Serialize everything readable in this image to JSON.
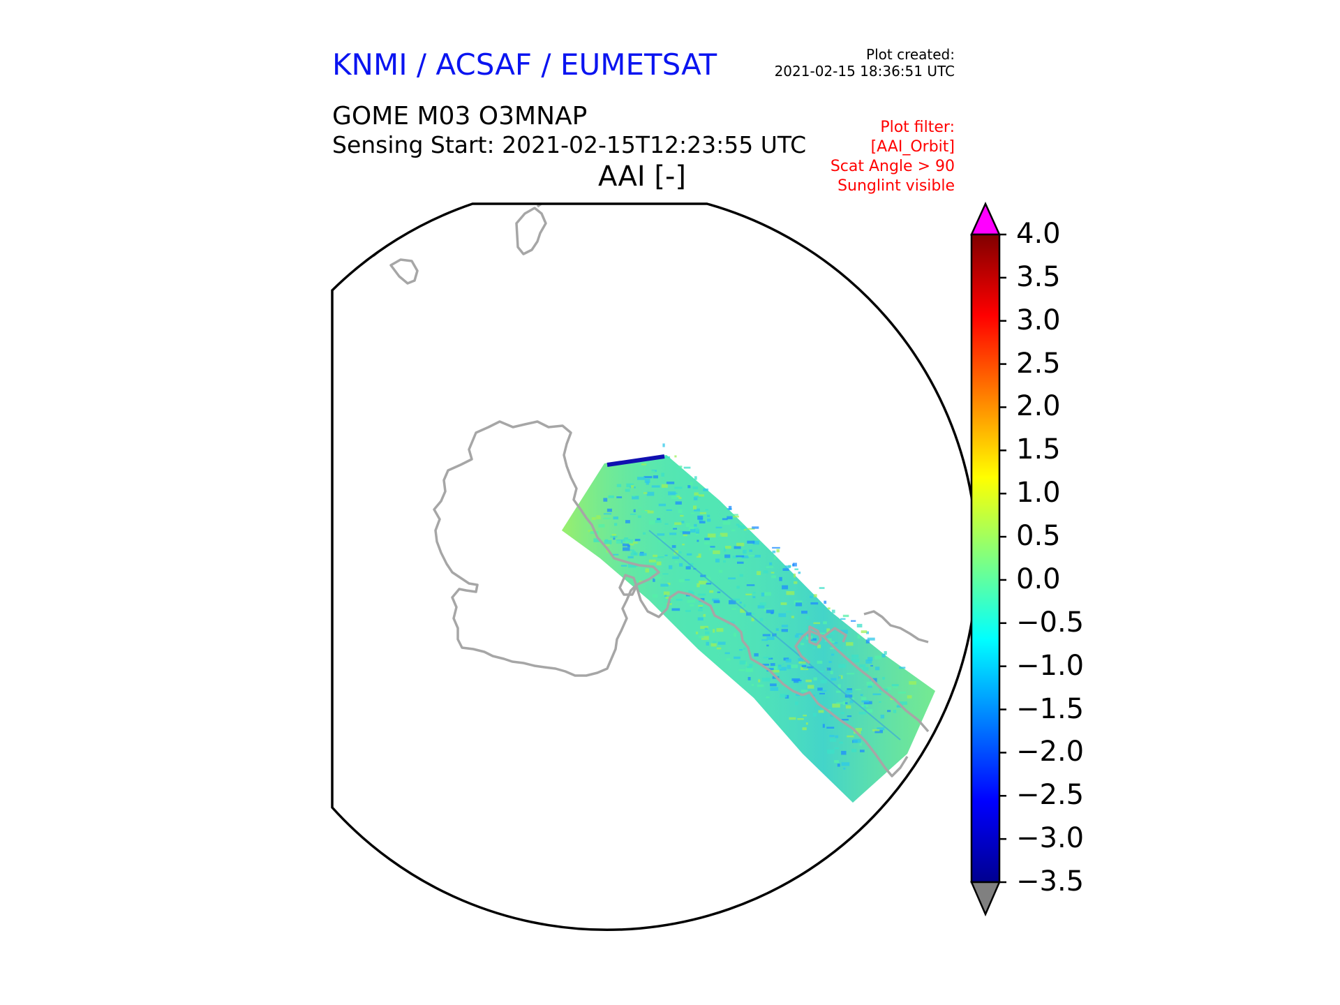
{
  "header": {
    "organization": "KNMI / ACSAF / EUMETSAT",
    "plot_created_label": "Plot created:",
    "plot_created_time": "2021-02-15 18:36:51 UTC"
  },
  "product": {
    "title": "GOME M03 O3MNAP",
    "sensing_start": "Sensing Start: 2021-02-15T12:23:55 UTC",
    "variable": "AAI [-]"
  },
  "plot_filter": [
    "Plot filter:",
    "[AAI_Orbit]",
    "Scat Angle > 90",
    "Sunglint visible"
  ],
  "colorbar": {
    "min": -3.5,
    "max": 4.0,
    "ticks": [
      "4.0",
      "3.5",
      "3.0",
      "2.5",
      "2.0",
      "1.5",
      "1.0",
      "0.5",
      "0.0",
      "−0.5",
      "−1.0",
      "−1.5",
      "−2.0",
      "−2.5",
      "−3.0",
      "−3.5"
    ],
    "tick_values": [
      4.0,
      3.5,
      3.0,
      2.5,
      2.0,
      1.5,
      1.0,
      0.5,
      0.0,
      -0.5,
      -1.0,
      -1.5,
      -2.0,
      -2.5,
      -3.0,
      -3.5
    ],
    "over_color": "#ff00ff",
    "under_color": "#808080",
    "colormap": [
      "#00008f",
      "#0000ff",
      "#0080ff",
      "#00ffff",
      "#80ff80",
      "#ffff00",
      "#ff8000",
      "#ff0000",
      "#800000"
    ]
  },
  "map": {
    "coastline_color": "#a6a6a6",
    "swath_colors": [
      "#3ce0c8",
      "#54f0a8",
      "#2fc8e8",
      "#9ef05a",
      "#1e8cff"
    ]
  }
}
